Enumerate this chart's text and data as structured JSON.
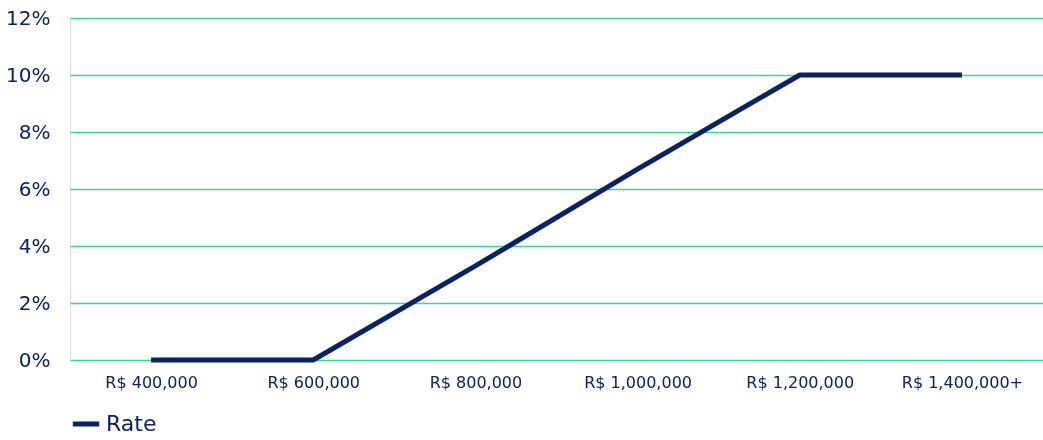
{
  "chart_data": {
    "type": "line",
    "categories": [
      "R$ 400,000",
      "R$ 600,000",
      "R$ 800,000",
      "R$ 1,000,000",
      "R$ 1,200,000",
      "R$ 1,400,000+"
    ],
    "series": [
      {
        "name": "Rate",
        "color": "#0b2161",
        "values": [
          0,
          0,
          3.3,
          6.7,
          10,
          10
        ]
      }
    ],
    "ylim": [
      0,
      12
    ],
    "yticks": [
      {
        "value": 0,
        "label": "0%"
      },
      {
        "value": 2,
        "label": "2%"
      },
      {
        "value": 4,
        "label": "4%"
      },
      {
        "value": 6,
        "label": "6%"
      },
      {
        "value": 8,
        "label": "8%"
      },
      {
        "value": 10,
        "label": "10%"
      },
      {
        "value": 12,
        "label": "12%"
      }
    ],
    "grid": "y",
    "legend": "bottom",
    "marker": "none",
    "line_style": "solid"
  }
}
